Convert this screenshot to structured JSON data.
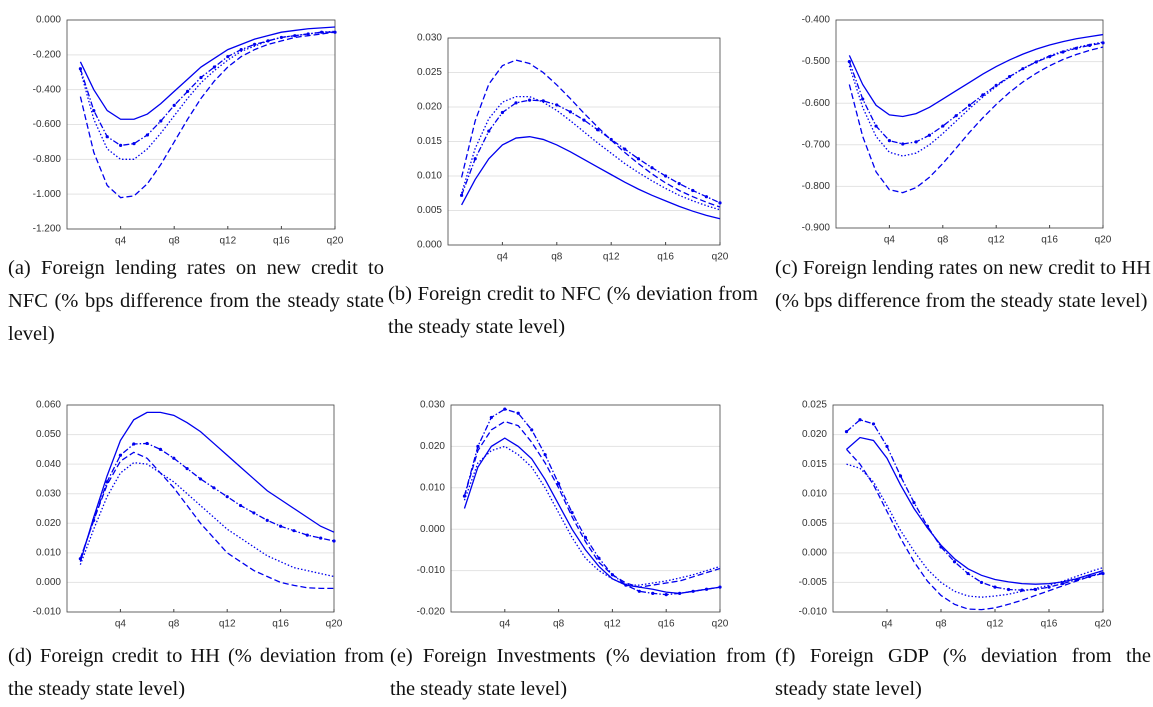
{
  "chart_data": [
    {
      "type": "line",
      "caption": "(a) Foreign lending rates on new credit to NFC (% bps difference from the steady state level)",
      "categories": [
        null,
        null,
        null,
        "q4",
        null,
        null,
        null,
        "q8",
        null,
        null,
        null,
        "q12",
        null,
        null,
        null,
        "q16",
        null,
        null,
        null,
        "q20"
      ],
      "ylim": [
        -1.2,
        0
      ],
      "yticks": [
        {
          "value": -1.2,
          "label": "-1.200"
        },
        {
          "value": -1,
          "label": "-1.000"
        },
        {
          "value": -0.8,
          "label": "-0.800"
        },
        {
          "value": -0.6,
          "label": "-0.600"
        },
        {
          "value": -0.4,
          "label": "-0.400"
        },
        {
          "value": -0.2,
          "label": "-0.200"
        },
        {
          "value": 0,
          "label": "0.000"
        }
      ],
      "grid": true,
      "series": [
        {
          "color": "#0000ee",
          "dash": "solid",
          "values": [
            -0.24,
            -0.4,
            -0.52,
            -0.57,
            -0.57,
            -0.54,
            -0.48,
            -0.41,
            -0.34,
            -0.27,
            -0.22,
            -0.17,
            -0.14,
            -0.11,
            -0.09,
            -0.07,
            -0.06,
            -0.05,
            -0.045,
            -0.04
          ]
        },
        {
          "color": "#0000ee",
          "dash": "dashed",
          "values": [
            -0.44,
            -0.76,
            -0.95,
            -1.02,
            -1.01,
            -0.94,
            -0.83,
            -0.7,
            -0.57,
            -0.45,
            -0.35,
            -0.27,
            -0.21,
            -0.17,
            -0.14,
            -0.12,
            -0.1,
            -0.09,
            -0.08,
            -0.07
          ]
        },
        {
          "color": "#0000ee",
          "dash": "dotted",
          "values": [
            -0.29,
            -0.57,
            -0.74,
            -0.8,
            -0.8,
            -0.74,
            -0.65,
            -0.55,
            -0.45,
            -0.36,
            -0.29,
            -0.23,
            -0.18,
            -0.15,
            -0.12,
            -0.1,
            -0.09,
            -0.08,
            -0.07,
            -0.065
          ]
        },
        {
          "color": "#0000ee",
          "dash": "dashdot",
          "marker": true,
          "values": [
            -0.28,
            -0.52,
            -0.67,
            -0.72,
            -0.71,
            -0.66,
            -0.58,
            -0.49,
            -0.41,
            -0.33,
            -0.27,
            -0.21,
            -0.17,
            -0.14,
            -0.12,
            -0.1,
            -0.09,
            -0.08,
            -0.07,
            -0.07
          ]
        }
      ]
    },
    {
      "type": "line",
      "caption": "(b) Foreign credit to NFC (% deviation from the steady state level)",
      "categories": [
        null,
        null,
        null,
        "q4",
        null,
        null,
        null,
        "q8",
        null,
        null,
        null,
        "q12",
        null,
        null,
        null,
        "q16",
        null,
        null,
        null,
        "q20"
      ],
      "ylim": [
        0,
        0.03
      ],
      "yticks": [
        {
          "value": 0,
          "label": "0.000"
        },
        {
          "value": 0.005,
          "label": "0.005"
        },
        {
          "value": 0.01,
          "label": "0.010"
        },
        {
          "value": 0.015,
          "label": "0.015"
        },
        {
          "value": 0.02,
          "label": "0.020"
        },
        {
          "value": 0.025,
          "label": "0.025"
        },
        {
          "value": 0.03,
          "label": "0.030"
        }
      ],
      "grid": true,
      "series": [
        {
          "color": "#0000ee",
          "dash": "solid",
          "values": [
            0.0058,
            0.0095,
            0.0125,
            0.0145,
            0.0155,
            0.0157,
            0.0153,
            0.0145,
            0.0135,
            0.0124,
            0.0113,
            0.0102,
            0.0091,
            0.0081,
            0.0072,
            0.0064,
            0.0056,
            0.0049,
            0.0043,
            0.0038
          ]
        },
        {
          "color": "#0000ee",
          "dash": "dashed",
          "values": [
            0.0098,
            0.018,
            0.0233,
            0.026,
            0.0268,
            0.0263,
            0.025,
            0.0232,
            0.0212,
            0.0191,
            0.0171,
            0.0152,
            0.0134,
            0.0118,
            0.0103,
            0.009,
            0.0079,
            0.007,
            0.0062,
            0.0055
          ]
        },
        {
          "color": "#0000ee",
          "dash": "dotted",
          "values": [
            0.0075,
            0.014,
            0.0183,
            0.0207,
            0.0215,
            0.0215,
            0.0207,
            0.0195,
            0.018,
            0.0164,
            0.0148,
            0.0133,
            0.0118,
            0.0105,
            0.0093,
            0.0082,
            0.0072,
            0.0064,
            0.0057,
            0.0051
          ]
        },
        {
          "color": "#0000ee",
          "dash": "dashdot",
          "marker": true,
          "values": [
            0.0072,
            0.0125,
            0.0165,
            0.0192,
            0.0206,
            0.021,
            0.0209,
            0.0203,
            0.0193,
            0.0181,
            0.0167,
            0.0153,
            0.0139,
            0.0125,
            0.0112,
            0.01,
            0.0089,
            0.0079,
            0.007,
            0.0061
          ]
        }
      ]
    },
    {
      "type": "line",
      "caption": "(c) Foreign lending rates on new credit to HH (% bps difference from the steady state level)",
      "categories": [
        null,
        null,
        null,
        "q4",
        null,
        null,
        null,
        "q8",
        null,
        null,
        null,
        "q12",
        null,
        null,
        null,
        "q16",
        null,
        null,
        null,
        "q20"
      ],
      "ylim": [
        -0.9,
        -0.4
      ],
      "yticks": [
        {
          "value": -0.9,
          "label": "-0.900"
        },
        {
          "value": -0.8,
          "label": "-0.800"
        },
        {
          "value": -0.7,
          "label": "-0.700"
        },
        {
          "value": -0.6,
          "label": "-0.600"
        },
        {
          "value": -0.5,
          "label": "-0.500"
        },
        {
          "value": -0.4,
          "label": "-0.400"
        }
      ],
      "grid": true,
      "series": [
        {
          "color": "#0000ee",
          "dash": "solid",
          "values": [
            -0.485,
            -0.555,
            -0.605,
            -0.628,
            -0.632,
            -0.625,
            -0.61,
            -0.59,
            -0.57,
            -0.55,
            -0.53,
            -0.512,
            -0.496,
            -0.482,
            -0.47,
            -0.46,
            -0.452,
            -0.445,
            -0.44,
            -0.435
          ]
        },
        {
          "color": "#0000ee",
          "dash": "dashed",
          "values": [
            -0.555,
            -0.68,
            -0.765,
            -0.808,
            -0.815,
            -0.803,
            -0.778,
            -0.745,
            -0.708,
            -0.67,
            -0.635,
            -0.603,
            -0.574,
            -0.549,
            -0.528,
            -0.51,
            -0.495,
            -0.483,
            -0.473,
            -0.465
          ]
        },
        {
          "color": "#0000ee",
          "dash": "dotted",
          "values": [
            -0.51,
            -0.61,
            -0.68,
            -0.718,
            -0.727,
            -0.72,
            -0.7,
            -0.673,
            -0.643,
            -0.613,
            -0.585,
            -0.56,
            -0.537,
            -0.517,
            -0.5,
            -0.486,
            -0.475,
            -0.466,
            -0.459,
            -0.453
          ]
        },
        {
          "color": "#0000ee",
          "dash": "dashdot",
          "marker": true,
          "values": [
            -0.5,
            -0.59,
            -0.655,
            -0.69,
            -0.698,
            -0.693,
            -0.677,
            -0.655,
            -0.63,
            -0.605,
            -0.58,
            -0.557,
            -0.536,
            -0.517,
            -0.501,
            -0.488,
            -0.477,
            -0.468,
            -0.461,
            -0.455
          ]
        }
      ]
    },
    {
      "type": "line",
      "caption": "(d) Foreign credit to HH (% deviation from the steady state level)",
      "categories": [
        null,
        null,
        null,
        "q4",
        null,
        null,
        null,
        "q8",
        null,
        null,
        null,
        "q12",
        null,
        null,
        null,
        "q16",
        null,
        null,
        null,
        "q20"
      ],
      "ylim": [
        -0.01,
        0.06
      ],
      "yticks": [
        {
          "value": -0.01,
          "label": "-0.010"
        },
        {
          "value": 0,
          "label": "0.000"
        },
        {
          "value": 0.01,
          "label": "0.010"
        },
        {
          "value": 0.02,
          "label": "0.020"
        },
        {
          "value": 0.03,
          "label": "0.030"
        },
        {
          "value": 0.04,
          "label": "0.040"
        },
        {
          "value": 0.05,
          "label": "0.050"
        },
        {
          "value": 0.06,
          "label": "0.060"
        }
      ],
      "grid": true,
      "series": [
        {
          "color": "#0000ee",
          "dash": "solid",
          "values": [
            0.007,
            0.022,
            0.036,
            0.048,
            0.055,
            0.0575,
            0.0575,
            0.0565,
            0.054,
            0.051,
            0.047,
            0.043,
            0.039,
            0.035,
            0.031,
            0.028,
            0.025,
            0.022,
            0.019,
            0.017
          ]
        },
        {
          "color": "#0000ee",
          "dash": "dashed",
          "values": [
            0.008,
            0.021,
            0.033,
            0.041,
            0.044,
            0.042,
            0.037,
            0.032,
            0.026,
            0.02,
            0.015,
            0.01,
            0.007,
            0.004,
            0.002,
            0,
            -0.001,
            -0.0018,
            -0.002,
            -0.002
          ]
        },
        {
          "color": "#0000ee",
          "dash": "dotted",
          "values": [
            0.006,
            0.018,
            0.029,
            0.037,
            0.0405,
            0.04,
            0.037,
            0.034,
            0.03,
            0.026,
            0.022,
            0.018,
            0.015,
            0.012,
            0.009,
            0.007,
            0.005,
            0.004,
            0.003,
            0.002
          ]
        },
        {
          "color": "#0000ee",
          "dash": "dashdot",
          "marker": true,
          "values": [
            0.008,
            0.021,
            0.034,
            0.043,
            0.0468,
            0.047,
            0.045,
            0.042,
            0.0385,
            0.035,
            0.032,
            0.029,
            0.026,
            0.0235,
            0.021,
            0.019,
            0.0175,
            0.016,
            0.015,
            0.014
          ]
        }
      ]
    },
    {
      "type": "line",
      "caption": "(e) Foreign Investments (% deviation from the steady state level)",
      "categories": [
        null,
        null,
        null,
        "q4",
        null,
        null,
        null,
        "q8",
        null,
        null,
        null,
        "q12",
        null,
        null,
        null,
        "q16",
        null,
        null,
        null,
        "q20"
      ],
      "ylim": [
        -0.02,
        0.03
      ],
      "yticks": [
        {
          "value": -0.02,
          "label": "-0.020"
        },
        {
          "value": -0.01,
          "label": "-0.010"
        },
        {
          "value": 0,
          "label": "0.000"
        },
        {
          "value": 0.01,
          "label": "0.010"
        },
        {
          "value": 0.02,
          "label": "0.020"
        },
        {
          "value": 0.03,
          "label": "0.030"
        }
      ],
      "grid": true,
      "series": [
        {
          "color": "#0000ee",
          "dash": "solid",
          "values": [
            0.005,
            0.015,
            0.02,
            0.022,
            0.02,
            0.017,
            0.012,
            0.006,
            0,
            -0.005,
            -0.009,
            -0.012,
            -0.0135,
            -0.014,
            -0.0145,
            -0.0152,
            -0.0155,
            -0.015,
            -0.0145,
            -0.014
          ]
        },
        {
          "color": "#0000ee",
          "dash": "dashed",
          "values": [
            0.008,
            0.019,
            0.024,
            0.026,
            0.025,
            0.021,
            0.016,
            0.01,
            0.003,
            -0.003,
            -0.008,
            -0.011,
            -0.013,
            -0.014,
            -0.0135,
            -0.013,
            -0.0125,
            -0.0115,
            -0.0105,
            -0.0095
          ]
        },
        {
          "color": "#0000ee",
          "dash": "dotted",
          "values": [
            0.007,
            0.016,
            0.019,
            0.02,
            0.018,
            0.015,
            0.01,
            0.004,
            -0.002,
            -0.007,
            -0.01,
            -0.012,
            -0.0135,
            -0.0135,
            -0.013,
            -0.0125,
            -0.0118,
            -0.011,
            -0.01,
            -0.009
          ]
        },
        {
          "color": "#0000ee",
          "dash": "dashdot",
          "marker": true,
          "values": [
            0.008,
            0.02,
            0.027,
            0.029,
            0.028,
            0.024,
            0.018,
            0.011,
            0.004,
            -0.002,
            -0.007,
            -0.011,
            -0.0135,
            -0.015,
            -0.0155,
            -0.0158,
            -0.0155,
            -0.015,
            -0.0145,
            -0.014
          ]
        }
      ]
    },
    {
      "type": "line",
      "caption": "(f) Foreign GDP (% deviation from the steady state level)",
      "categories": [
        null,
        null,
        null,
        "q4",
        null,
        null,
        null,
        "q8",
        null,
        null,
        null,
        "q12",
        null,
        null,
        null,
        "q16",
        null,
        null,
        null,
        "q20"
      ],
      "ylim": [
        -0.01,
        0.025
      ],
      "yticks": [
        {
          "value": -0.01,
          "label": "-0.010"
        },
        {
          "value": -0.005,
          "label": "-0.005"
        },
        {
          "value": 0,
          "label": "0.000"
        },
        {
          "value": 0.005,
          "label": "0.005"
        },
        {
          "value": 0.01,
          "label": "0.010"
        },
        {
          "value": 0.015,
          "label": "0.015"
        },
        {
          "value": 0.02,
          "label": "0.020"
        },
        {
          "value": 0.025,
          "label": "0.025"
        }
      ],
      "grid": true,
      "series": [
        {
          "color": "#0000ee",
          "dash": "solid",
          "values": [
            0.0175,
            0.0195,
            0.019,
            0.016,
            0.0115,
            0.0075,
            0.0042,
            0.0013,
            -0.001,
            -0.0027,
            -0.0038,
            -0.0045,
            -0.0049,
            -0.0052,
            -0.0053,
            -0.0052,
            -0.0049,
            -0.0044,
            -0.0037,
            -0.003
          ]
        },
        {
          "color": "#0000ee",
          "dash": "dashed",
          "values": [
            0.0175,
            0.015,
            0.0115,
            0.007,
            0.0025,
            -0.0015,
            -0.0048,
            -0.0072,
            -0.0087,
            -0.0095,
            -0.0096,
            -0.0093,
            -0.0087,
            -0.008,
            -0.0072,
            -0.0064,
            -0.0056,
            -0.0048,
            -0.004,
            -0.0033
          ]
        },
        {
          "color": "#0000ee",
          "dash": "dotted",
          "values": [
            0.015,
            0.0143,
            0.012,
            0.008,
            0.0038,
            0.0003,
            -0.0028,
            -0.005,
            -0.0065,
            -0.0073,
            -0.0075,
            -0.0073,
            -0.007,
            -0.0065,
            -0.006,
            -0.0055,
            -0.0048,
            -0.004,
            -0.0032,
            -0.0025
          ]
        },
        {
          "color": "#0000ee",
          "dash": "dashdot",
          "marker": true,
          "values": [
            0.0205,
            0.0225,
            0.0218,
            0.018,
            0.013,
            0.0085,
            0.0045,
            0.001,
            -0.0015,
            -0.0035,
            -0.005,
            -0.0058,
            -0.0062,
            -0.0063,
            -0.0062,
            -0.0058,
            -0.0052,
            -0.0046,
            -0.004,
            -0.0035
          ]
        }
      ]
    }
  ]
}
